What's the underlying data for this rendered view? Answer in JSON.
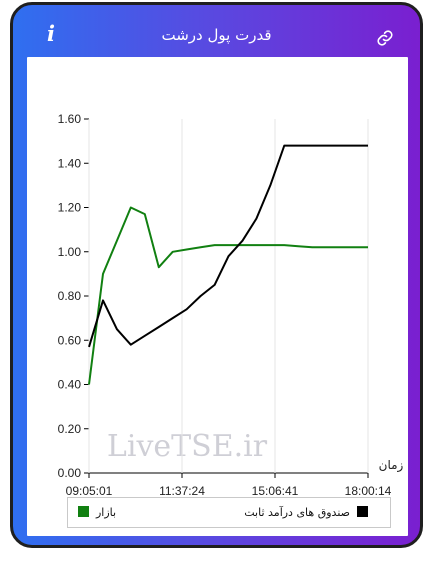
{
  "header": {
    "title": "قدرت پول درشت",
    "info_icon": "i",
    "link_icon": "link-icon"
  },
  "colors": {
    "market": "#118011",
    "fund": "#000000"
  },
  "watermark": "LiveTSE.ir",
  "chart_data": {
    "type": "line",
    "x_label": "زمان",
    "x_ticks": [
      "09:05:01",
      "11:37:24",
      "15:06:41",
      "18:00:14"
    ],
    "y_ticks": [
      "0.00",
      "0.20",
      "0.40",
      "0.60",
      "0.80",
      "1.00",
      "1.20",
      "1.40",
      "1.60"
    ],
    "ylim": [
      0,
      1.6
    ],
    "x": [
      0,
      0.05,
      0.1,
      0.15,
      0.2,
      0.25,
      0.3,
      0.35,
      0.4,
      0.45,
      0.5,
      0.55,
      0.6,
      0.65,
      0.7,
      0.75,
      0.8,
      0.85,
      0.9,
      0.95,
      1.0
    ],
    "series": [
      {
        "name": "بازار",
        "color": "#118011",
        "values": [
          0.4,
          0.9,
          1.05,
          1.2,
          1.17,
          0.93,
          1.0,
          1.01,
          1.02,
          1.03,
          1.03,
          1.03,
          1.03,
          1.03,
          1.03,
          1.025,
          1.02,
          1.02,
          1.02,
          1.02,
          1.02
        ]
      },
      {
        "name": "صندوق های درآمد ثابت",
        "color": "#000000",
        "values": [
          0.57,
          0.78,
          0.65,
          0.58,
          0.62,
          0.66,
          0.7,
          0.74,
          0.8,
          0.85,
          0.98,
          1.05,
          1.15,
          1.3,
          1.48,
          1.48,
          1.48,
          1.48,
          1.48,
          1.48,
          1.48
        ]
      }
    ],
    "legend": [
      "بازار",
      "صندوق های درآمد ثابت"
    ]
  }
}
